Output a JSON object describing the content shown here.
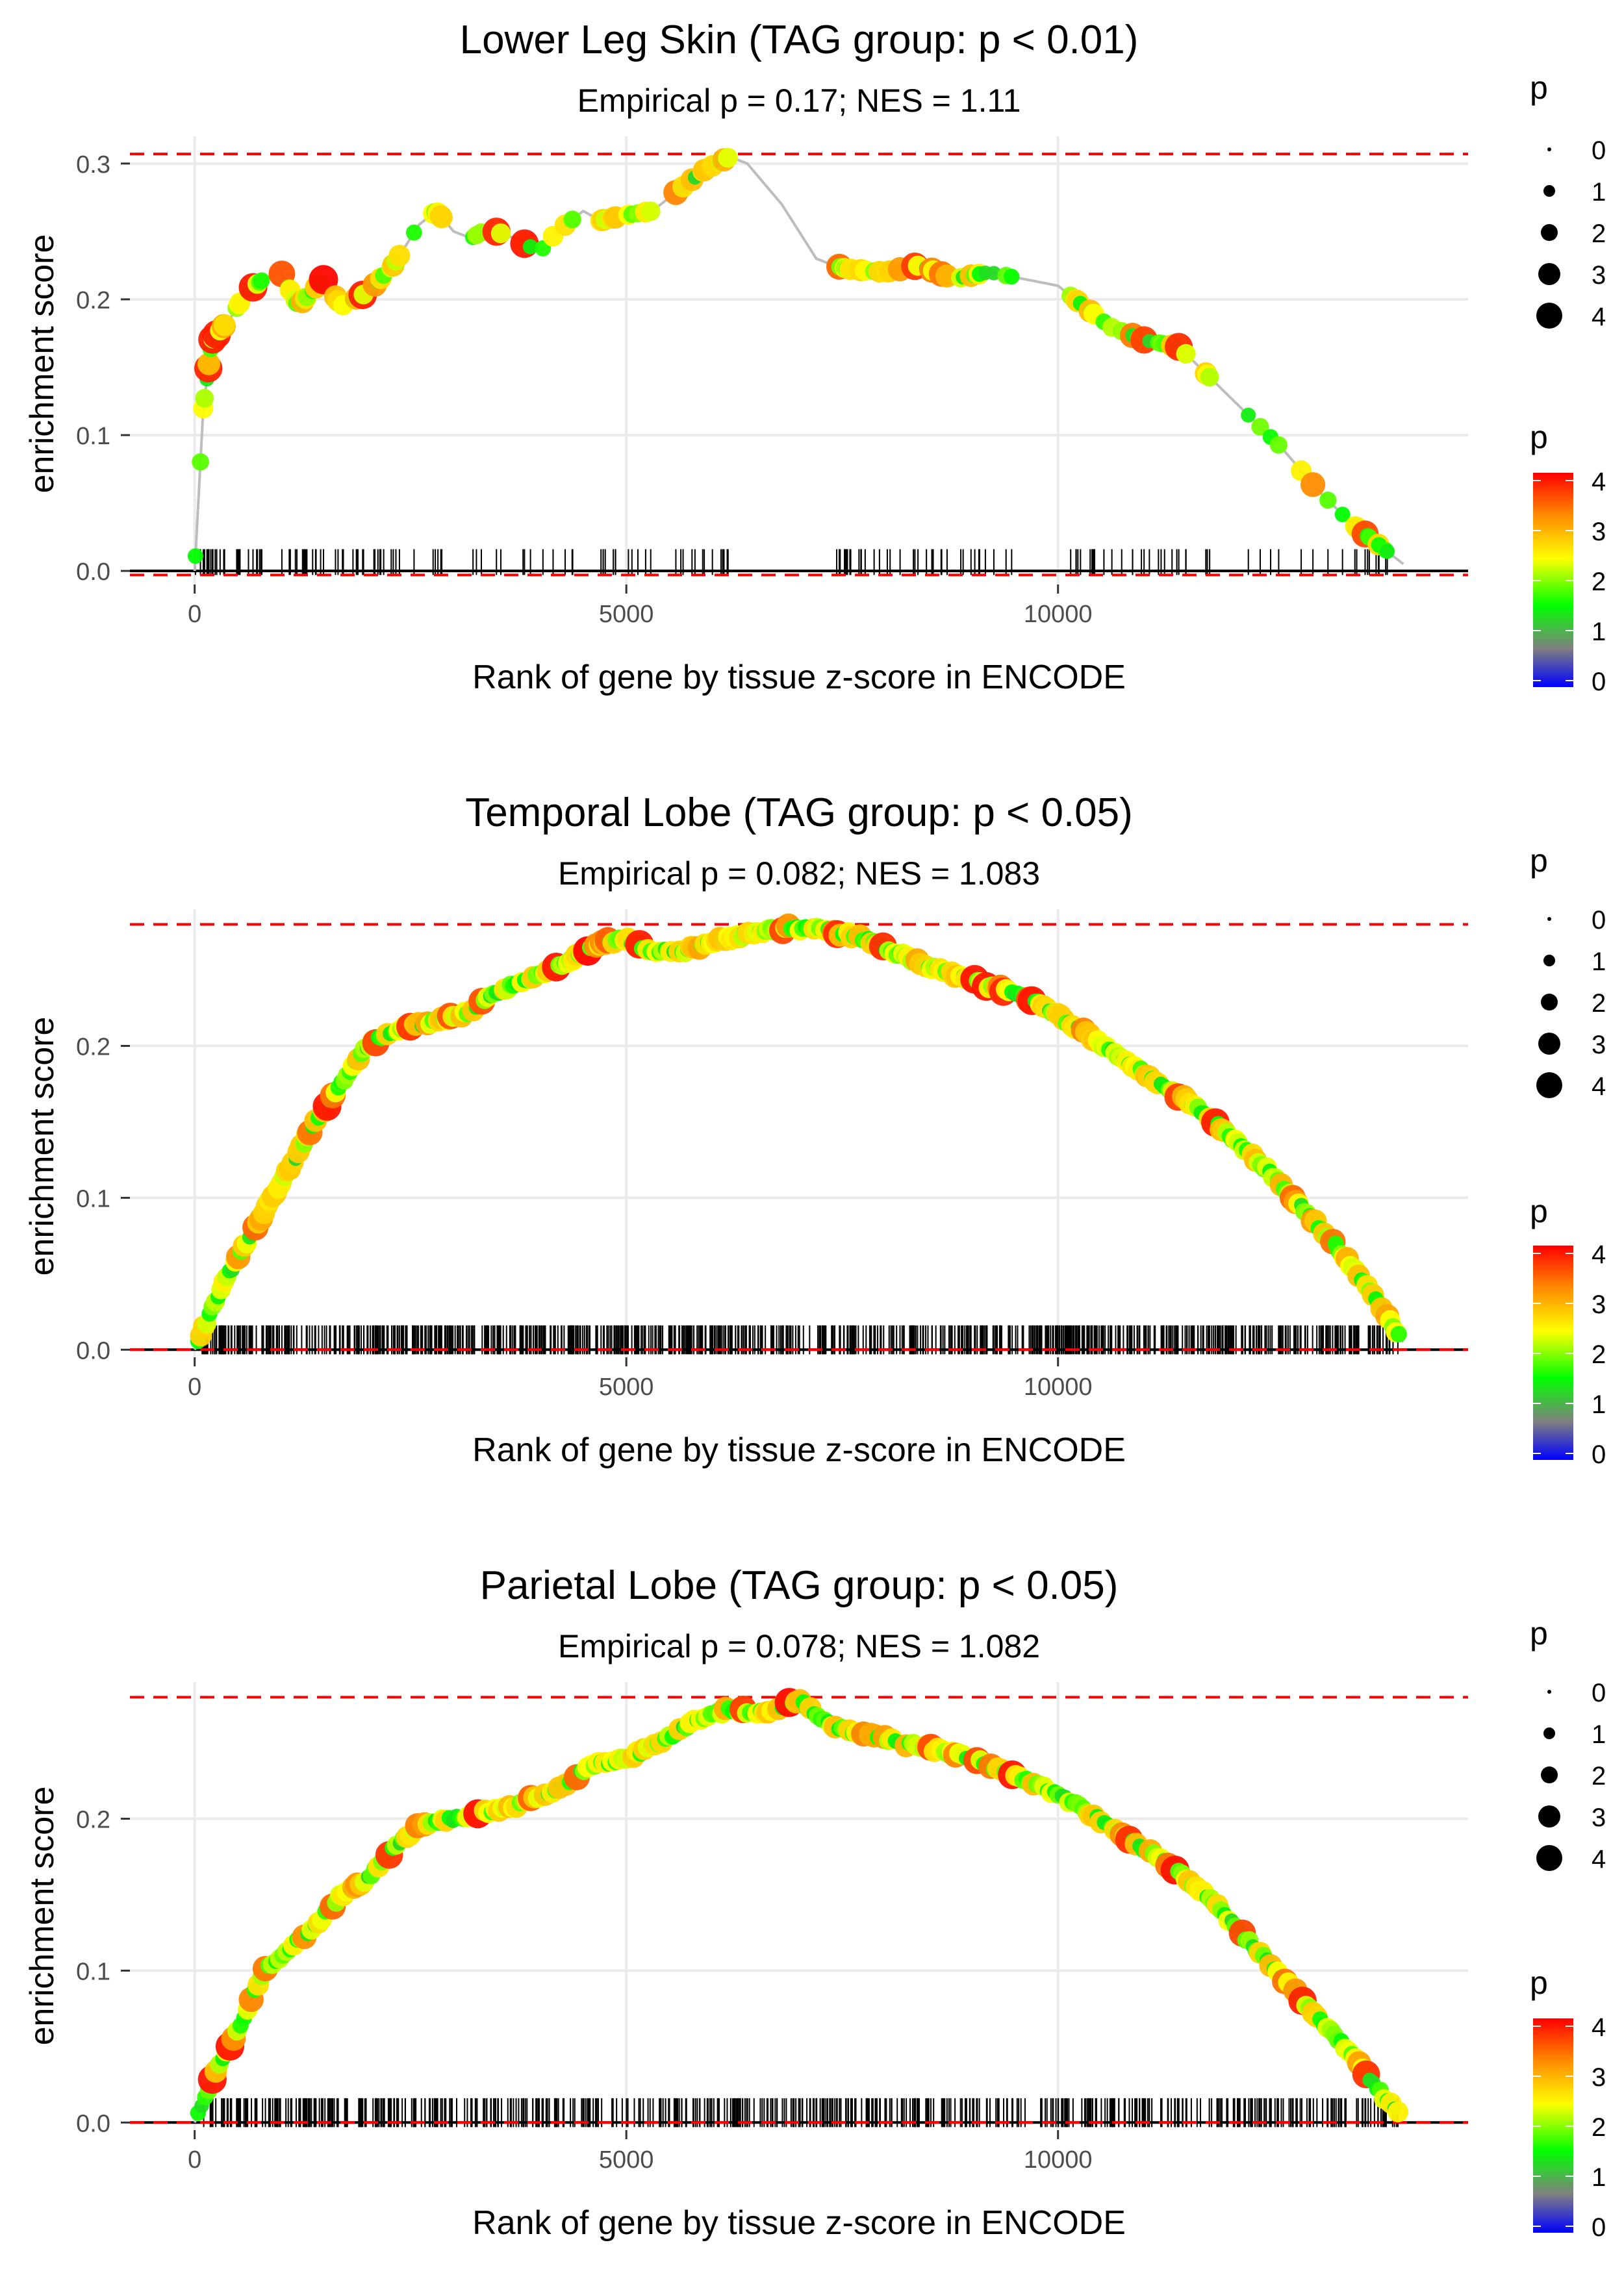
{
  "chart_data": [
    {
      "type": "line",
      "title": "Lower Leg Skin (TAG group: p < 0.01)",
      "subtitle": "Empirical p = 0.17; NES = 1.11",
      "xlabel": "Rank of gene by tissue z-score in ENCODE",
      "ylabel": "enrichment score",
      "xlim": [
        -750,
        14750
      ],
      "ylim": [
        -0.01,
        0.32
      ],
      "xticks": [
        0,
        5000,
        10000
      ],
      "xtick_labels": [
        "0",
        "5000",
        "10000"
      ],
      "yticks": [
        0.0,
        0.1,
        0.2,
        0.3
      ],
      "ytick_labels": [
        "0.0",
        "0.1",
        "0.2",
        "0.3"
      ],
      "hlines": [
        0.307,
        -0.003
      ],
      "curve_style": "jagged",
      "rug_density": "sparse",
      "curve_x": [
        0,
        100,
        200,
        400,
        600,
        800,
        1000,
        1200,
        1500,
        1700,
        2000,
        2300,
        2600,
        2800,
        3000,
        3200,
        3400,
        3700,
        4000,
        4200,
        4500,
        4700,
        5000,
        5300,
        5600,
        5900,
        6200,
        6400,
        6800,
        7200,
        7400,
        7600,
        8000,
        8400,
        8800,
        9200,
        9600,
        10000,
        10300,
        10600,
        11000,
        11400,
        11800,
        12200,
        12600,
        13000,
        13400,
        14000
      ],
      "curve_y": [
        0.0,
        0.12,
        0.17,
        0.185,
        0.205,
        0.215,
        0.22,
        0.195,
        0.215,
        0.195,
        0.205,
        0.225,
        0.255,
        0.265,
        0.25,
        0.245,
        0.252,
        0.245,
        0.235,
        0.25,
        0.265,
        0.258,
        0.262,
        0.265,
        0.28,
        0.295,
        0.305,
        0.3,
        0.27,
        0.23,
        0.225,
        0.222,
        0.22,
        0.225,
        0.215,
        0.22,
        0.215,
        0.21,
        0.195,
        0.18,
        0.17,
        0.165,
        0.14,
        0.115,
        0.09,
        0.06,
        0.035,
        0.005
      ],
      "legend_size": {
        "title": "p",
        "labels": [
          "0",
          "1",
          "2",
          "3",
          "4"
        ]
      },
      "legend_color": {
        "title": "p",
        "labels": [
          "4",
          "3",
          "2",
          "1",
          "0"
        ]
      }
    },
    {
      "type": "line",
      "title": "Temporal Lobe (TAG group: p < 0.05)",
      "subtitle": "Empirical p = 0.082; NES = 1.083",
      "xlabel": "Rank of gene by tissue z-score in ENCODE",
      "ylabel": "enrichment score",
      "xlim": [
        -750,
        14750
      ],
      "ylim": [
        -0.005,
        0.29
      ],
      "xticks": [
        0,
        5000,
        10000
      ],
      "xtick_labels": [
        "0",
        "5000",
        "10000"
      ],
      "yticks": [
        0.0,
        0.1,
        0.2
      ],
      "ytick_labels": [
        "0.0",
        "0.1",
        "0.2"
      ],
      "hlines": [
        0.28,
        0.0
      ],
      "curve_style": "smooth",
      "rug_density": "dense",
      "curve_x": [
        0,
        150,
        300,
        500,
        800,
        1100,
        1400,
        1700,
        2000,
        2300,
        2700,
        3100,
        3500,
        3900,
        4300,
        4700,
        5000,
        5300,
        5700,
        6100,
        6500,
        6900,
        7300,
        7700,
        8100,
        8500,
        8900,
        9300,
        9700,
        10000,
        10400,
        10800,
        11200,
        11600,
        12000,
        12400,
        12800,
        13200,
        13600,
        14000
      ],
      "curve_y": [
        0.0,
        0.02,
        0.04,
        0.06,
        0.09,
        0.12,
        0.15,
        0.175,
        0.2,
        0.21,
        0.215,
        0.22,
        0.235,
        0.245,
        0.255,
        0.268,
        0.27,
        0.262,
        0.263,
        0.27,
        0.275,
        0.278,
        0.276,
        0.272,
        0.262,
        0.252,
        0.245,
        0.238,
        0.23,
        0.22,
        0.205,
        0.19,
        0.175,
        0.16,
        0.14,
        0.12,
        0.095,
        0.07,
        0.04,
        0.005
      ],
      "legend_size": {
        "title": "p",
        "labels": [
          "0",
          "1",
          "2",
          "3",
          "4"
        ]
      },
      "legend_color": {
        "title": "p",
        "labels": [
          "4",
          "3",
          "2",
          "1",
          "0"
        ]
      }
    },
    {
      "type": "line",
      "title": "Parietal Lobe (TAG group: p < 0.05)",
      "subtitle": "Empirical p = 0.078; NES = 1.082",
      "xlabel": "Rank of gene by tissue z-score in ENCODE",
      "ylabel": "enrichment score",
      "xlim": [
        -750,
        14750
      ],
      "ylim": [
        -0.005,
        0.29
      ],
      "xticks": [
        0,
        5000,
        10000
      ],
      "xtick_labels": [
        "0",
        "5000",
        "10000"
      ],
      "yticks": [
        0.0,
        0.1,
        0.2
      ],
      "ytick_labels": [
        "0.0",
        "0.1",
        "0.2"
      ],
      "hlines": [
        0.28,
        0.0
      ],
      "curve_style": "smooth",
      "rug_density": "medium",
      "curve_x": [
        0,
        150,
        300,
        500,
        800,
        1100,
        1400,
        1700,
        2000,
        2300,
        2600,
        3000,
        3400,
        3800,
        4200,
        4600,
        5000,
        5400,
        5800,
        6200,
        6600,
        7000,
        7400,
        7800,
        8200,
        8600,
        9000,
        9400,
        9800,
        10200,
        10600,
        11000,
        11400,
        11800,
        12200,
        12600,
        13000,
        13400,
        13800,
        14000
      ],
      "curve_y": [
        0.0,
        0.02,
        0.04,
        0.06,
        0.1,
        0.115,
        0.13,
        0.15,
        0.16,
        0.18,
        0.195,
        0.2,
        0.205,
        0.21,
        0.22,
        0.235,
        0.24,
        0.25,
        0.265,
        0.272,
        0.27,
        0.278,
        0.26,
        0.255,
        0.25,
        0.245,
        0.24,
        0.23,
        0.222,
        0.21,
        0.195,
        0.18,
        0.165,
        0.145,
        0.12,
        0.095,
        0.07,
        0.045,
        0.015,
        0.003
      ],
      "legend_size": {
        "title": "p",
        "labels": [
          "0",
          "1",
          "2",
          "3",
          "4"
        ]
      },
      "legend_color": {
        "title": "p",
        "labels": [
          "4",
          "3",
          "2",
          "1",
          "0"
        ]
      }
    }
  ],
  "colors": {
    "grid": "#ebebeb",
    "curve_line": "#bdbdbd",
    "threshold": "#ff0000",
    "axis_zero": "#000000",
    "text": "#000000",
    "tick_text": "#4d4d4d",
    "gradient_stops": [
      "#ff0000",
      "#ff8c00",
      "#ffff00",
      "#00ff00",
      "#808080",
      "#0000ff"
    ]
  }
}
